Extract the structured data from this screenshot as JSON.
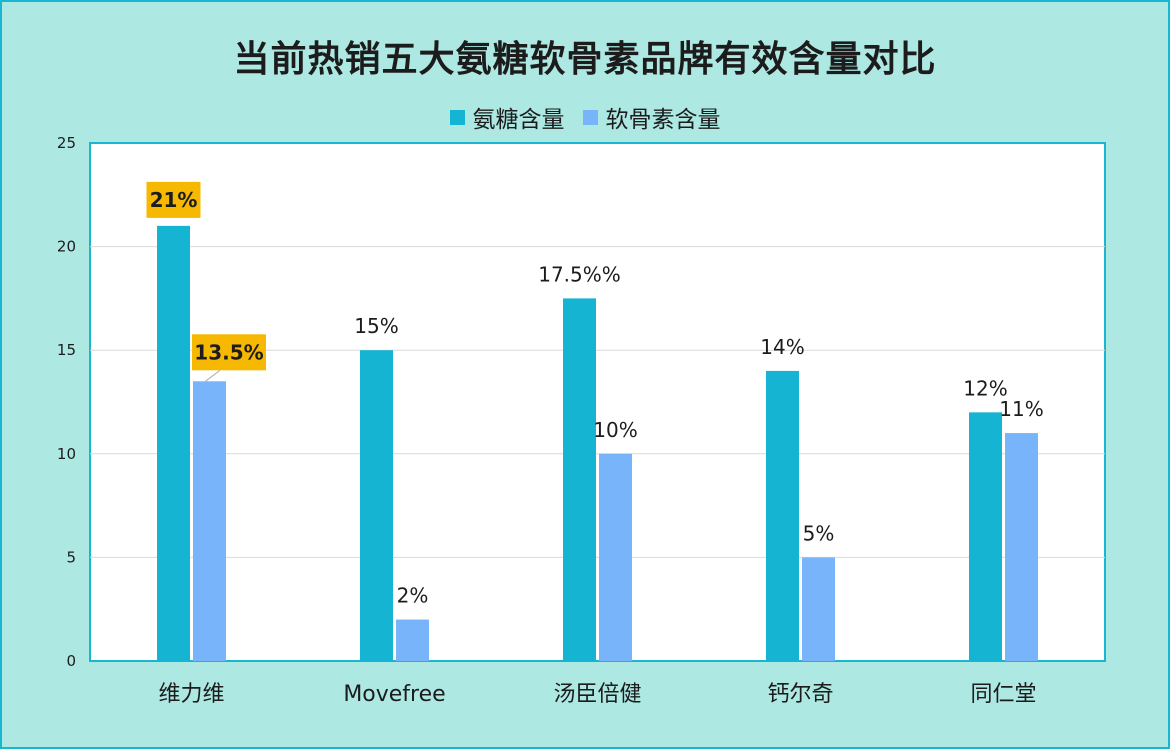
{
  "chart_data": {
    "type": "bar",
    "title": "当前热销五大氨糖软骨素品牌有效含量对比",
    "categories": [
      "维力维",
      "Movefree",
      "汤臣倍健",
      "钙尔奇",
      "同仁堂"
    ],
    "series": [
      {
        "name": "氨糖含量",
        "values": [
          21,
          15,
          17.5,
          14,
          12
        ],
        "labels": [
          "21%",
          "15%",
          "17.5%%",
          "14%",
          "12%"
        ],
        "color": "#14b4d2"
      },
      {
        "name": "软骨素含量",
        "values": [
          13.5,
          2,
          10,
          5,
          11
        ],
        "labels": [
          "13.5%",
          "2%",
          "10%",
          "5%",
          "11%"
        ],
        "color": "#78b4fa"
      }
    ],
    "highlighted": [
      [
        0,
        0
      ],
      [
        1,
        0
      ]
    ],
    "highlight_color": "#f6b800",
    "ylim": [
      0,
      25
    ],
    "yticks": [
      0,
      5,
      10,
      15,
      20,
      25
    ],
    "grid": true,
    "legend_position": "top"
  }
}
